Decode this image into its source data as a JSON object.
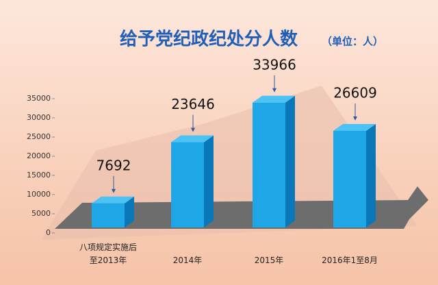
{
  "chart_data": {
    "type": "bar",
    "title": "给予党纪政纪处分人数",
    "subtitle": "（单位：人）",
    "categories": [
      "八项规定实施后至2013年",
      "2014年",
      "2015年",
      "2016年1至8月"
    ],
    "values": [
      7692,
      23646,
      33966,
      26609
    ],
    "color": "#1ea6e6",
    "ylim": [
      0,
      35000
    ],
    "yticks": [
      0,
      5000,
      10000,
      15000,
      20000,
      25000,
      30000,
      35000
    ],
    "grid": false
  }
}
